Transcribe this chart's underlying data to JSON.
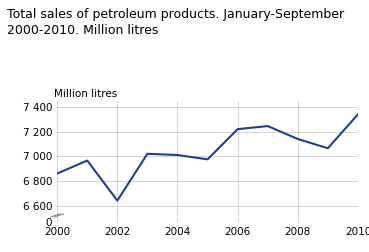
{
  "title_line1": "Total sales of petroleum products. January-September",
  "title_line2": "2000-2010. Million litres",
  "ylabel": "Million litres",
  "x": [
    2000,
    2001,
    2002,
    2003,
    2004,
    2005,
    2006,
    2007,
    2008,
    2009,
    2010
  ],
  "y": [
    6860,
    6965,
    6640,
    7020,
    7010,
    6975,
    7220,
    7245,
    7140,
    7065,
    7340
  ],
  "line_color": "#1f3f8f",
  "line_width": 1.5,
  "yticks_main": [
    6600,
    6800,
    7000,
    7200,
    7400
  ],
  "ytick_labels_main": [
    "6 600",
    "6 800",
    "7 000",
    "7 200",
    "7 400"
  ],
  "ytick_zero_label": "0",
  "xticks": [
    2000,
    2002,
    2004,
    2006,
    2008,
    2010
  ],
  "ylim_main": [
    6520,
    7450
  ],
  "ylim_zero": [
    0,
    400
  ],
  "grid_color": "#cccccc",
  "bg_color": "#ffffff",
  "title_fontsize": 9.0,
  "axis_fontsize": 7.5,
  "ylabel_fontsize": 7.5
}
